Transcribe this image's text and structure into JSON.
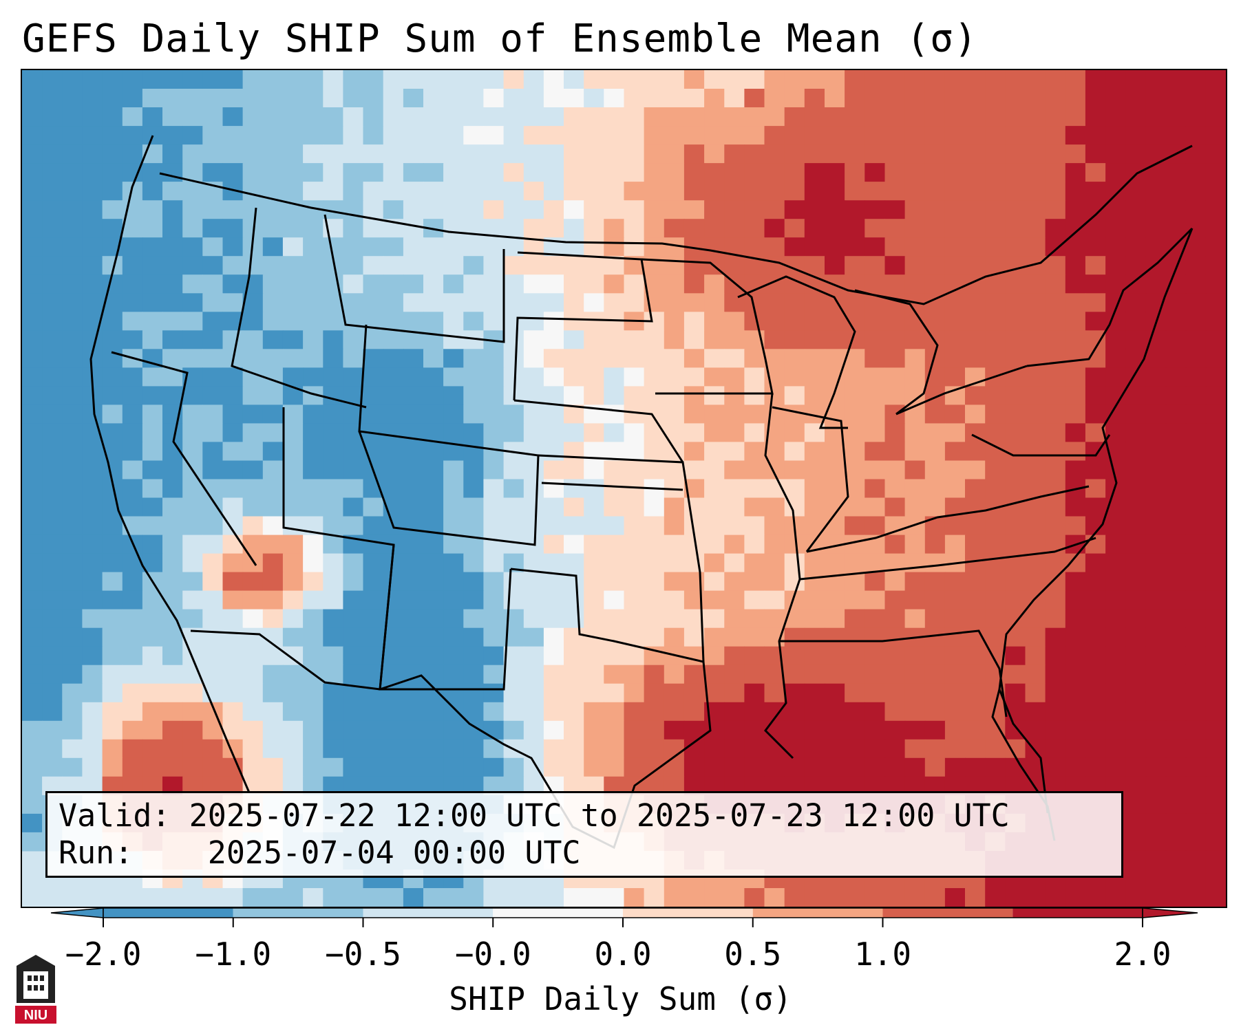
{
  "title": "GEFS Daily SHIP Sum of Ensemble Mean (σ)",
  "info": {
    "valid_label": "Valid:",
    "valid_value": "2025-07-22 12:00 UTC to 2025-07-23 12:00 UTC",
    "run_label": "Run:",
    "run_value": "2025-07-04 00:00 UTC"
  },
  "colorbar": {
    "label": "SHIP Daily Sum (σ)",
    "ticks": [
      "−2.0",
      "−1.0",
      "−0.5",
      "−0.0",
      "0.0",
      "0.5",
      "1.0",
      "2.0"
    ],
    "colors": [
      "#4393c3",
      "#92c5de",
      "#d1e5f0",
      "#f7f7f7",
      "#fddbc7",
      "#f4a582",
      "#d6604d",
      "#b2182b"
    ],
    "extend": "both"
  },
  "logo": {
    "text": "NIU"
  },
  "map_field": {
    "grid_cols": 60,
    "grid_rows": 45,
    "ocean_color": "#d1e5f0",
    "pattern": "west: negative anomalies (blue) over Pacific NW, Rockies, Southwest, Texas and Mexico; east: positive anomalies (red) over Upper Midwest, Great Lakes, Southeast, Atlantic and Gulf of Mexico"
  }
}
